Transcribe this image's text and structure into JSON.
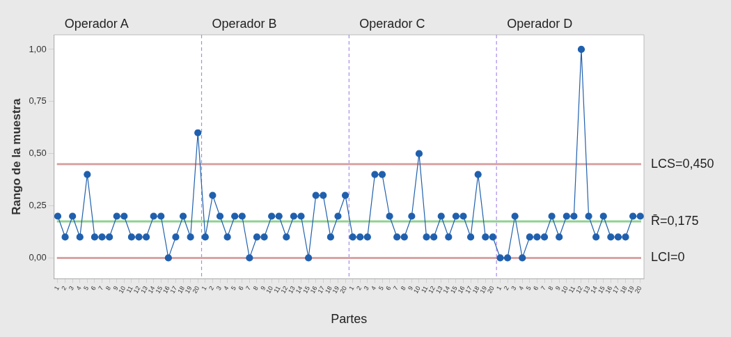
{
  "chart_data": {
    "type": "line",
    "xlabel": "Partes",
    "ylabel": "Rango de la muestra",
    "annotations": [
      "Operador A",
      "Operador B",
      "Operador C",
      "Operador D"
    ],
    "categories": [
      "1",
      "2",
      "3",
      "4",
      "5",
      "6",
      "7",
      "8",
      "9",
      "10",
      "11",
      "12",
      "13",
      "14",
      "15",
      "16",
      "17",
      "18",
      "19",
      "20",
      "1",
      "2",
      "3",
      "4",
      "5",
      "6",
      "7",
      "8",
      "9",
      "10",
      "11",
      "12",
      "13",
      "14",
      "15",
      "16",
      "17",
      "18",
      "19",
      "20",
      "1",
      "2",
      "3",
      "4",
      "5",
      "6",
      "7",
      "8",
      "9",
      "10",
      "11",
      "12",
      "13",
      "14",
      "15",
      "16",
      "17",
      "18",
      "19",
      "20",
      "1",
      "2",
      "3",
      "4",
      "5",
      "6",
      "7",
      "8",
      "9",
      "10",
      "11",
      "12",
      "13",
      "14",
      "15",
      "16",
      "17",
      "18",
      "19",
      "20"
    ],
    "series": [
      {
        "color": "#1f5fad",
        "values": [
          0.2,
          0.1,
          0.2,
          0.1,
          0.4,
          0.1,
          0.1,
          0.1,
          0.2,
          0.2,
          0.1,
          0.1,
          0.1,
          0.2,
          0.2,
          0,
          0.1,
          0.2,
          0.1,
          0.6,
          0.1,
          0.3,
          0.2,
          0.1,
          0.2,
          0.2,
          0,
          0.1,
          0.1,
          0.2,
          0.2,
          0.1,
          0.2,
          0.2,
          0,
          0.3,
          0.3,
          0.1,
          0.2,
          0.3,
          0.1,
          0.1,
          0.1,
          0.4,
          0.4,
          0.2,
          0.1,
          0.1,
          0.2,
          0.5,
          0.1,
          0.1,
          0.2,
          0.1,
          0.2,
          0.2,
          0.1,
          0.4,
          0.1,
          0.1,
          0,
          0,
          0.2,
          0,
          0.1,
          0.1,
          0.1,
          0.2,
          0.1,
          0.2,
          0.2,
          1.0,
          0.2,
          0.1,
          0.2,
          0.1,
          0.1,
          0.1,
          0.2,
          0.2
        ]
      }
    ],
    "ylim": [
      -0.1,
      1.07
    ],
    "yticks": [
      {
        "value": 0,
        "label": "0,00"
      },
      {
        "value": 0.25,
        "label": "0,25"
      },
      {
        "value": 0.5,
        "label": "0,50"
      },
      {
        "value": 0.75,
        "label": "0,75"
      },
      {
        "value": 1,
        "label": "1,00"
      }
    ],
    "ref_lines": [
      {
        "axis": "y",
        "value": 0.45,
        "label": "LCS=0,450",
        "color": "#d9a3a3"
      },
      {
        "axis": "y",
        "value": 0.175,
        "label": "R̄=0,175",
        "color": "#8fd18f"
      },
      {
        "axis": "y",
        "value": 0,
        "label": "LCI=0",
        "color": "#d9a3a3"
      }
    ],
    "grid": false,
    "legend": false,
    "marker": "circle",
    "line_style": "solid"
  }
}
